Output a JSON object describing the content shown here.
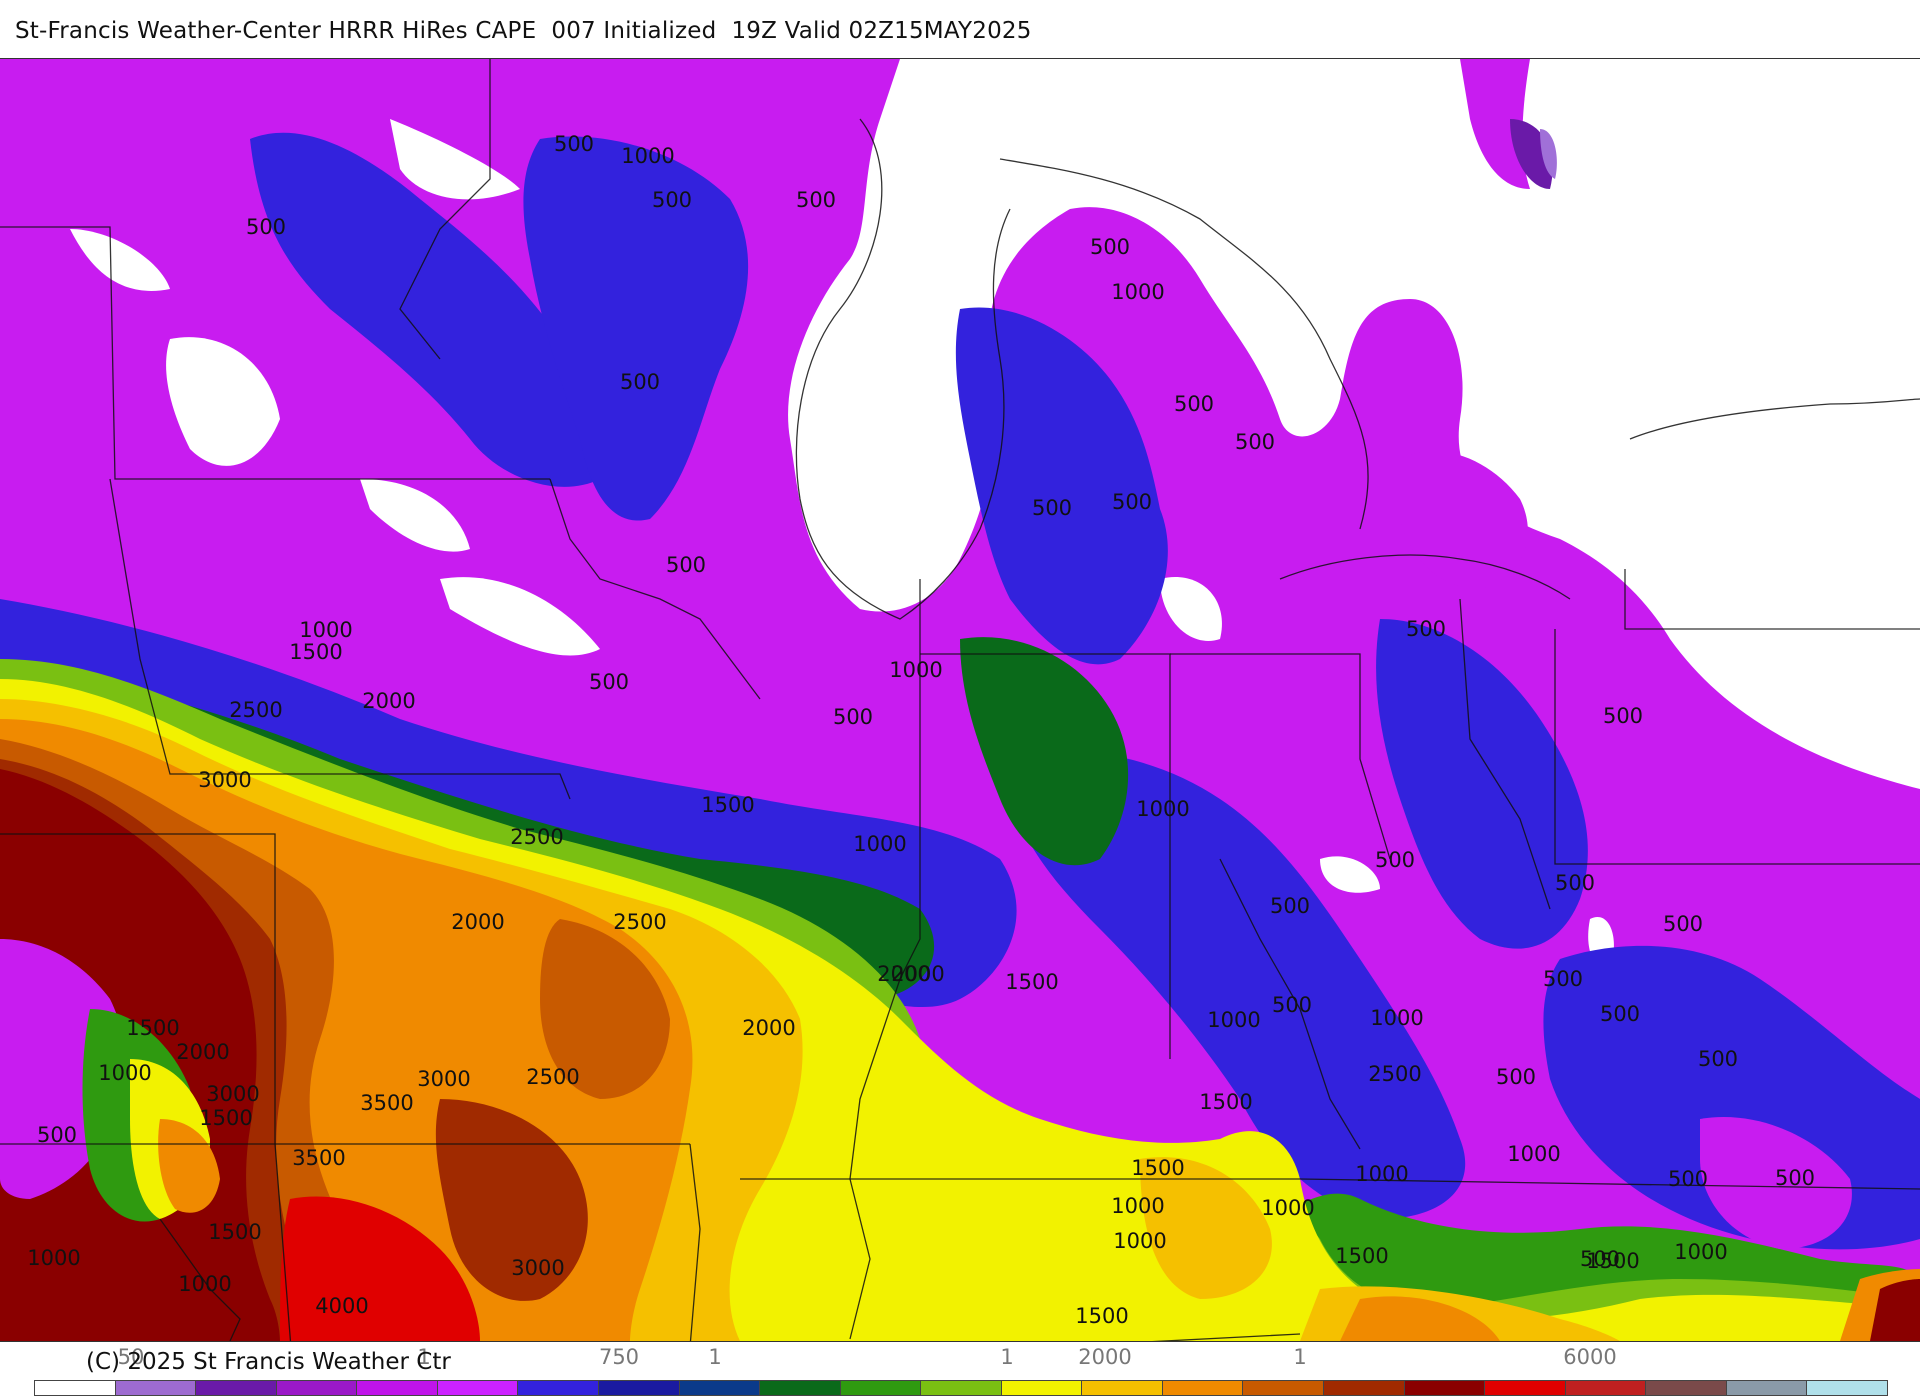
{
  "header": {
    "title": "St-Francis Weather-Center HRRR HiRes CAPE  007 Initialized  19Z Valid 02Z15MAY2025"
  },
  "footer": {
    "copyright": "(C) 2025 St Francis Weather Ctr"
  },
  "colorbar": {
    "colors": [
      "#ffffff",
      "#9d6bd0",
      "#6a1aa8",
      "#9b19c8",
      "#c014ea",
      "#cc22ff",
      "#3322dd",
      "#1a1aa0",
      "#0b3a8a",
      "#0a6a1a",
      "#2f9a10",
      "#7ac012",
      "#f2f200",
      "#f5c000",
      "#f08a00",
      "#c85a00",
      "#a02a00",
      "#8a0000",
      "#e00000",
      "#c02020",
      "#7a4a4a",
      "#8a9aa8",
      "#b0e0ea"
    ],
    "labels": [
      {
        "text": "50"
      },
      {
        "text": "1"
      },
      {
        "text": "750"
      },
      {
        "text": "1"
      },
      {
        "text": "1"
      },
      {
        "text": "2000"
      },
      {
        "text": "1"
      },
      {
        "text": "6000"
      }
    ]
  },
  "map": {
    "field": "CAPE",
    "fill_colors": {
      "white": "#ffffff",
      "lavender": "#a070d8",
      "violet": "#6a1aa8",
      "magenta": "#c81cf0",
      "blue": "#3322dd",
      "navy": "#1a1aa0",
      "dkgreen": "#0a6a1a",
      "green": "#2f9a10",
      "ltgreen": "#7ac012",
      "yellow": "#f2f200",
      "gold": "#f5c000",
      "orange": "#f08a00",
      "dkorange": "#c85a00",
      "rust": "#a02a00",
      "maroon": "#8a0000",
      "red": "#e00000"
    },
    "contour_labels": [
      "500",
      "1000",
      "500",
      "500",
      "500",
      "500",
      "500",
      "1000",
      "500",
      "500",
      "500",
      "500",
      "500",
      "1000",
      "1500",
      "2500",
      "2000",
      "500",
      "500",
      "1000",
      "3000",
      "1500",
      "2500",
      "1000",
      "2000",
      "2500",
      "2000",
      "2000",
      "2000",
      "1500",
      "1000",
      "500",
      "500",
      "500",
      "500",
      "1000",
      "500",
      "500",
      "500",
      "500",
      "1000",
      "500",
      "500",
      "1500",
      "2000",
      "1000",
      "3000",
      "2500",
      "3500",
      "3000",
      "2500",
      "500",
      "3500",
      "1500",
      "1500",
      "1500",
      "1500",
      "1000",
      "1000",
      "1000",
      "1000",
      "1000",
      "500",
      "1000",
      "4000",
      "3000",
      "1500",
      "1000",
      "1500",
      "500",
      "1500",
      "1000",
      "500",
      "500"
    ]
  }
}
